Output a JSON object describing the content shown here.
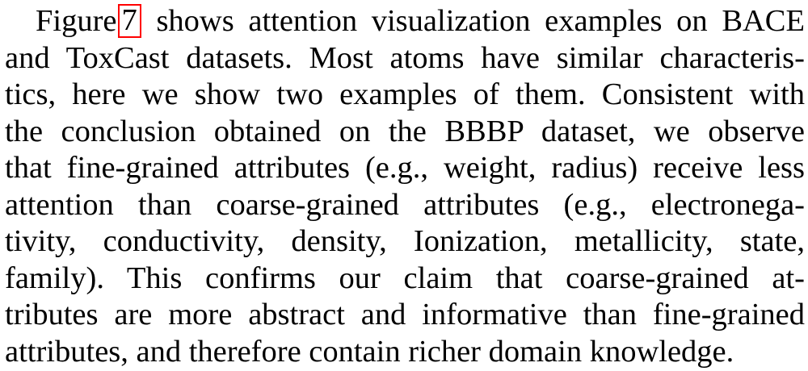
{
  "paragraph": {
    "figure_ref": {
      "prefix": "Figure",
      "number": "7",
      "suffix": "shows attention visualization examples on BACE"
    },
    "lines": [
      "and ToxCast datasets. Most atoms have similar characteris-",
      "tics, here we show two examples of them. Consistent with",
      "the conclusion obtained on the BBBP dataset, we observe",
      "that fine-grained attributes (e.g., weight, radius) receive less",
      "attention than coarse-grained attributes (e.g., electronega-",
      "tivity, conductivity, density, Ionization, metallicity, state,",
      "family). This confirms our claim that coarse-grained at-",
      "tributes are more abstract and informative than fine-grained",
      "attributes, and therefore contain richer domain knowledge."
    ]
  },
  "colors": {
    "text": "#000000",
    "link_box": "#ff0000"
  }
}
